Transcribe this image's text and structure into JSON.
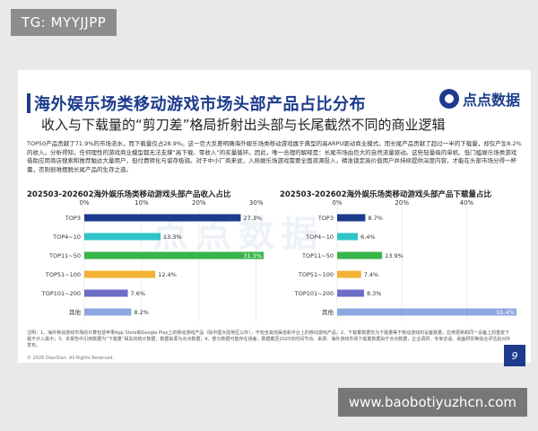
{
  "overlay": {
    "tag": "TG: MYYJJPP",
    "url": "www.baobotiyuzhcn.com"
  },
  "header": {
    "title": "海外娱乐场类移动游戏市场头部产品占比分布",
    "subtitle": "收入与下载量的“剪刀差”格局折射出头部与长尾截然不同的商业逻辑",
    "logo_text": "点点数据",
    "watermark": "点点数据"
  },
  "description": "TOP50产品贡献了71.9%的市场流水，而下载量仅占28.9%。这一巨大反差明确海外娱乐场类移动游戏属于典型的高ARPU驱动商业模式。而长尾产品贡献了超过一半的下载量，却仅产生8.2%的收入。分析得知，任何理性的游戏商业模型都无法支撑“高下载、零收入”的买量循环。因此，唯一合理的解释是：长尾市场由巨大的自然流量驱动。这些轻量级的单机、低门槛娱乐场类游戏借助应用商店搜索和推荐触达大量用户，但付费转化与留存极弱。对于中小厂商来说，入局娱乐场游戏需要全面资源投入，精准锁定高价值用户并持续提供深度内容，才能在头部市场分得一杯羹，否则很难摆脱长尾产品的生存之道。",
  "footnote": "注明：1、海外移动游戏市场的计算包括苹果App Store和Google Play上的移动游戏产品（除中国大陆地区以外），不包含其他渠道和平台上的移动游戏产品；2、下载量数据仅为下载量等于移动游戏的设备数量，应用更新和同一设备上的重复下载不计入其中；3、本报告中引用数据为“下载量”相关的统计数据，数据来源为点点数据；4、部分数据可能存在误差，数据截至2025年时间节点。来源：海外游戏市场下载量数据由于点点数据，企业调研、专家访谈、桌面研究等综合评估后对外发布。",
  "copyright": "© 2026 DianDian. All Rights Reserved.",
  "page_number": "9",
  "chart_data": [
    {
      "type": "bar",
      "orientation": "horizontal",
      "title": "202503-202602海外娱乐场类移动游戏头部产品收入占比",
      "categories": [
        "TOP3",
        "TOP4~10",
        "TOP11~50",
        "TOP51~100",
        "TOP101~200",
        "其他"
      ],
      "values": [
        27.3,
        13.3,
        31.3,
        12.4,
        7.6,
        8.2
      ],
      "value_labels": [
        "27.3%",
        "13.3%",
        "31.3%",
        "12.4%",
        "7.6%",
        "8.2%"
      ],
      "ticks": [
        "0%",
        "10%",
        "20%",
        "30%"
      ],
      "xlim": [
        0,
        31.3
      ],
      "colors": [
        "#1c3b8c",
        "#2ec4c8",
        "#38b44a",
        "#f2b233",
        "#6d6ec8",
        "#8fa7e0"
      ],
      "grid": true
    },
    {
      "type": "bar",
      "orientation": "horizontal",
      "title": "202503-202602海外娱乐场类移动游戏头部产品下载量占比",
      "categories": [
        "TOP3",
        "TOP4~10",
        "TOP11~50",
        "TOP51~100",
        "TOP101~200",
        "其他"
      ],
      "values": [
        8.7,
        6.4,
        13.9,
        7.4,
        8.3,
        55.4
      ],
      "value_labels": [
        "8.7%",
        "6.4%",
        "13.9%",
        "7.4%",
        "8.3%",
        "55.4%"
      ],
      "ticks": [
        "0%",
        "20%",
        "40%",
        "60%"
      ],
      "xlim": [
        0,
        55.4
      ],
      "colors": [
        "#1c3b8c",
        "#2ec4c8",
        "#38b44a",
        "#f2b233",
        "#6d6ec8",
        "#8fa7e0"
      ],
      "grid": true
    }
  ]
}
